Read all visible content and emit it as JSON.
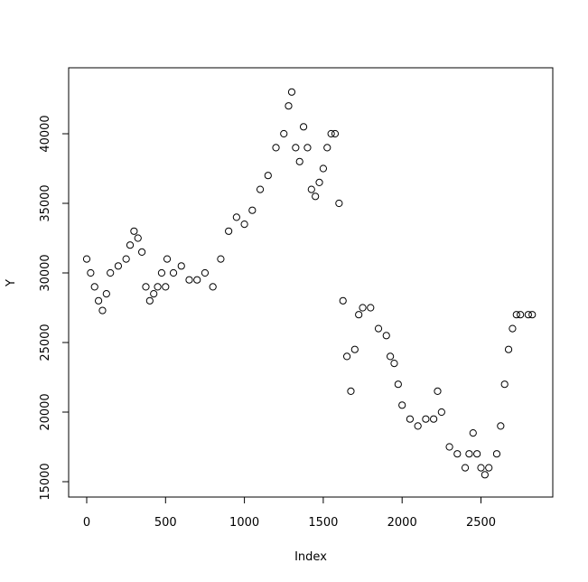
{
  "chart_data": {
    "type": "scatter",
    "title": "",
    "xlabel": "Index",
    "ylabel": "Y",
    "xlim": [
      -60,
      2900
    ],
    "ylim": [
      14200,
      43800
    ],
    "xticks": [
      0,
      500,
      1000,
      1500,
      2000,
      2500
    ],
    "yticks": [
      15000,
      20000,
      25000,
      30000,
      35000,
      40000
    ],
    "grid": false,
    "marker": "open-circle",
    "color": "#000000",
    "note_sampling": "values sampled from the plotted series",
    "x": [
      0,
      25,
      50,
      75,
      100,
      125,
      150,
      200,
      250,
      275,
      300,
      325,
      350,
      375,
      400,
      425,
      450,
      475,
      500,
      510,
      550,
      600,
      650,
      700,
      750,
      800,
      850,
      900,
      950,
      1000,
      1050,
      1100,
      1150,
      1200,
      1250,
      1280,
      1300,
      1325,
      1350,
      1375,
      1400,
      1425,
      1450,
      1475,
      1500,
      1525,
      1550,
      1575,
      1600,
      1625,
      1650,
      1675,
      1700,
      1725,
      1750,
      1800,
      1850,
      1900,
      1925,
      1950,
      1975,
      2000,
      2050,
      2100,
      2150,
      2200,
      2225,
      2250,
      2300,
      2350,
      2400,
      2425,
      2450,
      2475,
      2500,
      2525,
      2550,
      2600,
      2625,
      2650,
      2675,
      2700,
      2725,
      2750,
      2800,
      2825
    ],
    "y": [
      31000,
      30000,
      29000,
      28000,
      27300,
      28500,
      30000,
      30500,
      31000,
      32000,
      33000,
      32500,
      31500,
      29000,
      28000,
      28500,
      29000,
      30000,
      29000,
      31000,
      30000,
      30500,
      29500,
      29500,
      30000,
      29000,
      31000,
      33000,
      34000,
      33500,
      34500,
      36000,
      37000,
      39000,
      40000,
      42000,
      43000,
      39000,
      38000,
      40500,
      39000,
      36000,
      35500,
      36500,
      37500,
      39000,
      40000,
      40000,
      35000,
      28000,
      24000,
      21500,
      24500,
      27000,
      27500,
      27500,
      26000,
      25500,
      24000,
      23500,
      22000,
      20500,
      19500,
      19000,
      19500,
      19500,
      21500,
      20000,
      17500,
      17000,
      16000,
      17000,
      18500,
      17000,
      16000,
      15500,
      16000,
      17000,
      19000,
      22000,
      24500,
      26000,
      27000,
      27000,
      27000,
      27000
    ]
  }
}
